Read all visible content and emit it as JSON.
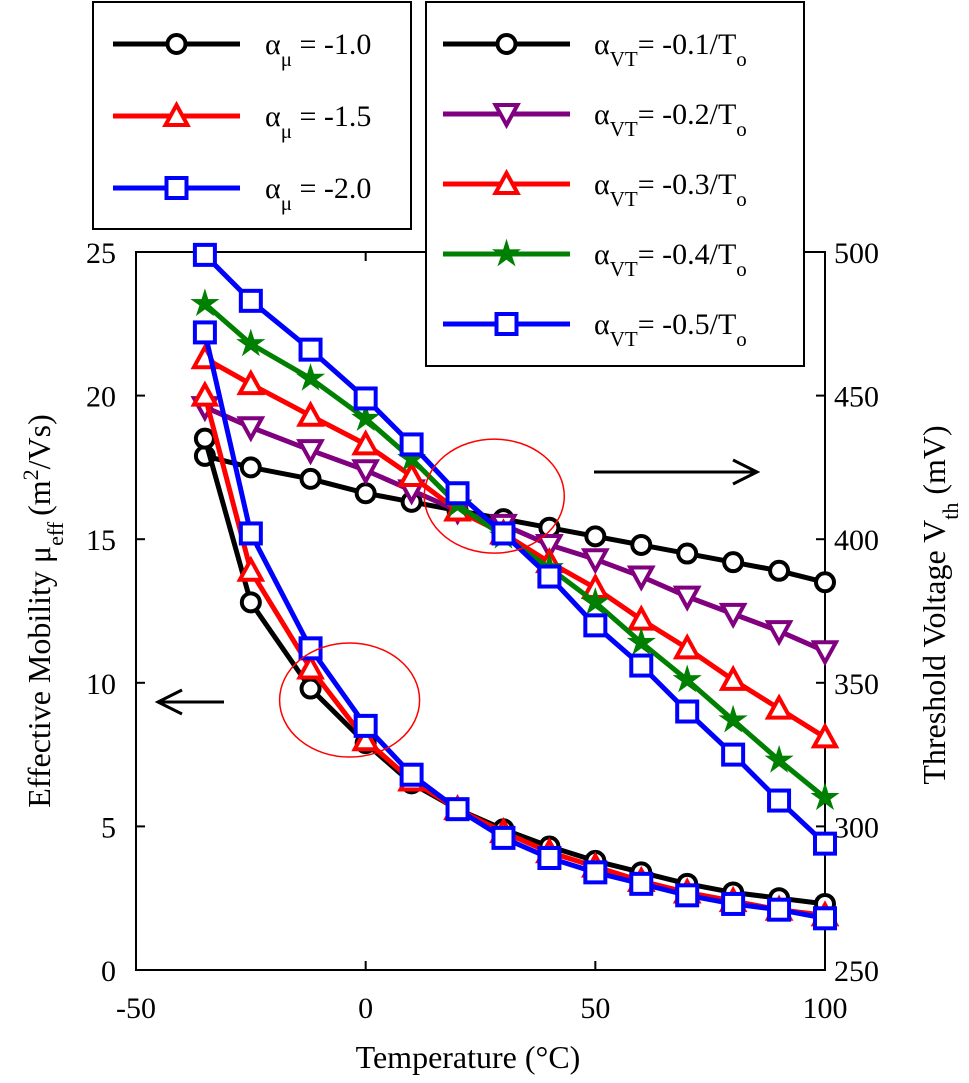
{
  "chart_data": {
    "type": "line",
    "xlabel": "Temperature (°C)",
    "ylabel_left": {
      "text": "Effective Mobility μ",
      "sub": "eff",
      "unit": "(m",
      "sup": "2",
      "unit_end": "/Vs)"
    },
    "ylabel_right": {
      "text": "Threshold Voltage V",
      "sub": "th",
      "unit": "(mV)"
    },
    "xlim": [
      -50,
      100
    ],
    "ylim_left": [
      0,
      25
    ],
    "ylim_right": [
      250,
      500
    ],
    "x_ticks": [
      "-50",
      "0",
      "50",
      "100"
    ],
    "x_tick_values": [
      -50,
      0,
      50,
      100
    ],
    "y_left_ticks": [
      "0",
      "5",
      "10",
      "15",
      "20",
      "25"
    ],
    "y_left_tick_values": [
      0,
      5,
      10,
      15,
      20,
      25
    ],
    "y_right_ticks": [
      "250",
      "300",
      "350",
      "400",
      "450",
      "500"
    ],
    "y_right_tick_values": [
      250,
      300,
      350,
      400,
      450,
      500
    ],
    "x": [
      -35,
      -25,
      -12,
      0,
      10,
      20,
      30,
      40,
      50,
      60,
      70,
      80,
      90,
      100
    ],
    "mobility_series": [
      {
        "name": "α_μ = -1.0",
        "sym": "α",
        "sub": "μ",
        "rest": " = -1.0",
        "color": "#000000",
        "marker": "circle",
        "axis": "left",
        "values": [
          18.5,
          12.8,
          9.8,
          7.9,
          6.5,
          5.6,
          4.9,
          4.3,
          3.8,
          3.4,
          3.0,
          2.7,
          2.5,
          2.3
        ]
      },
      {
        "name": "α_μ = -1.5",
        "sym": "α",
        "sub": "μ",
        "rest": " = -1.5",
        "color": "#ff0000",
        "marker": "triangle-up",
        "axis": "left",
        "values": [
          20.0,
          13.9,
          10.5,
          8.0,
          6.6,
          5.6,
          4.8,
          4.1,
          3.6,
          3.1,
          2.7,
          2.4,
          2.1,
          1.9
        ]
      },
      {
        "name": "α_μ = -2.0",
        "sym": "α",
        "sub": "μ",
        "rest": " = -2.0",
        "color": "#0000ff",
        "marker": "square",
        "axis": "left",
        "values": [
          22.2,
          15.2,
          11.2,
          8.5,
          6.8,
          5.6,
          4.6,
          3.9,
          3.4,
          3.0,
          2.6,
          2.3,
          2.1,
          1.8
        ]
      }
    ],
    "vth_series": [
      {
        "name": "α_VT = -0.1/T_o",
        "sym": "α",
        "sub": "VT",
        "rest": "= -0.1/T",
        "sub2": "o",
        "color": "#000000",
        "marker": "circle",
        "axis": "right",
        "values": [
          429,
          425,
          421,
          416,
          413,
          410,
          407,
          404,
          401,
          398,
          395,
          392,
          389,
          385
        ]
      },
      {
        "name": "α_VT = -0.2/T_o",
        "sym": "α",
        "sub": "VT",
        "rest": "= -0.2/T",
        "sub2": "o",
        "color": "#800080",
        "marker": "triangle-down",
        "axis": "right",
        "values": [
          446,
          439,
          431,
          424,
          417,
          410,
          405,
          398,
          393,
          387,
          380,
          374,
          368,
          361
        ]
      },
      {
        "name": "α_VT = -0.3/T_o",
        "sym": "α",
        "sub": "VT",
        "rest": "= -0.3/T",
        "sub2": "o",
        "color": "#ff0000",
        "marker": "triangle-up",
        "axis": "right",
        "values": [
          463,
          454,
          443,
          433,
          422,
          410,
          402,
          392,
          383,
          372,
          362,
          351,
          341,
          331
        ]
      },
      {
        "name": "α_VT = -0.4/T_o",
        "sym": "α",
        "sub": "VT",
        "rest": "= -0.4/T",
        "sub2": "o",
        "color": "#008000",
        "marker": "star",
        "axis": "right",
        "values": [
          482,
          468,
          456,
          442,
          428,
          412,
          401,
          390,
          378,
          364,
          351,
          337,
          323,
          310
        ]
      },
      {
        "name": "α_VT = -0.5/T_o",
        "sym": "α",
        "sub": "VT",
        "rest": "= -0.5/T",
        "sub2": "o",
        "color": "#0000ff",
        "marker": "square",
        "axis": "right",
        "values": [
          499,
          483,
          466,
          449,
          433,
          416,
          402,
          387,
          370,
          356,
          340,
          325,
          309,
          294
        ]
      }
    ],
    "annotations": [
      {
        "type": "circle",
        "color": "#ff0000",
        "note": "mobility crossover",
        "x": -3.5,
        "y_left": 9.4
      },
      {
        "type": "circle",
        "color": "#ff0000",
        "note": "threshold voltage crossover",
        "x": 28,
        "y_right": 415
      },
      {
        "type": "arrow",
        "direction": "left",
        "meaning": "left axis"
      },
      {
        "type": "arrow",
        "direction": "right",
        "meaning": "right axis"
      }
    ],
    "legend_left_placement": "top-left",
    "legend_right_placement": "top-right"
  }
}
